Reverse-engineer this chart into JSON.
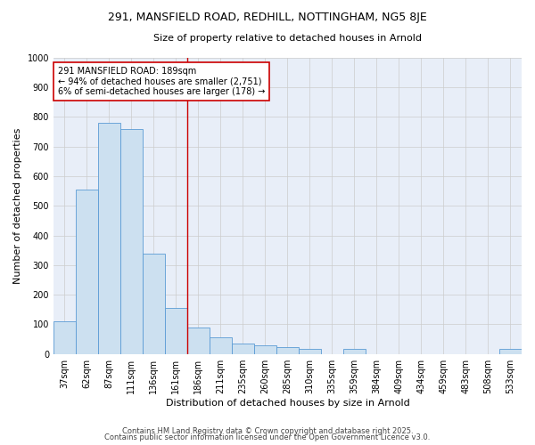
{
  "title_line1": "291, MANSFIELD ROAD, REDHILL, NOTTINGHAM, NG5 8JE",
  "title_line2": "Size of property relative to detached houses in Arnold",
  "xlabel": "Distribution of detached houses by size in Arnold",
  "ylabel": "Number of detached properties",
  "categories": [
    "37sqm",
    "62sqm",
    "87sqm",
    "111sqm",
    "136sqm",
    "161sqm",
    "186sqm",
    "211sqm",
    "235sqm",
    "260sqm",
    "285sqm",
    "310sqm",
    "335sqm",
    "359sqm",
    "384sqm",
    "409sqm",
    "434sqm",
    "459sqm",
    "483sqm",
    "508sqm",
    "533sqm"
  ],
  "values": [
    110,
    555,
    780,
    760,
    340,
    155,
    90,
    55,
    35,
    28,
    22,
    18,
    0,
    18,
    0,
    0,
    0,
    0,
    0,
    0,
    18
  ],
  "bar_color": "#cce0f0",
  "bar_edge_color": "#5b9bd5",
  "subject_line_index": 6,
  "annotation_text_line1": "291 MANSFIELD ROAD: 189sqm",
  "annotation_text_line2": "← 94% of detached houses are smaller (2,751)",
  "annotation_text_line3": "6% of semi-detached houses are larger (178) →",
  "annotation_box_color": "#ffffff",
  "annotation_box_edge": "#cc0000",
  "ylim": [
    0,
    1000
  ],
  "yticks": [
    0,
    100,
    200,
    300,
    400,
    500,
    600,
    700,
    800,
    900,
    1000
  ],
  "grid_color": "#cccccc",
  "plot_bg_color": "#e8eef8",
  "fig_bg_color": "#ffffff",
  "footer_line1": "Contains HM Land Registry data © Crown copyright and database right 2025.",
  "footer_line2": "Contains public sector information licensed under the Open Government Licence v3.0.",
  "subject_line_color": "#cc0000",
  "title1_fontsize": 9,
  "title2_fontsize": 8,
  "axis_label_fontsize": 8,
  "tick_fontsize": 7,
  "annotation_fontsize": 7,
  "footer_fontsize": 6
}
